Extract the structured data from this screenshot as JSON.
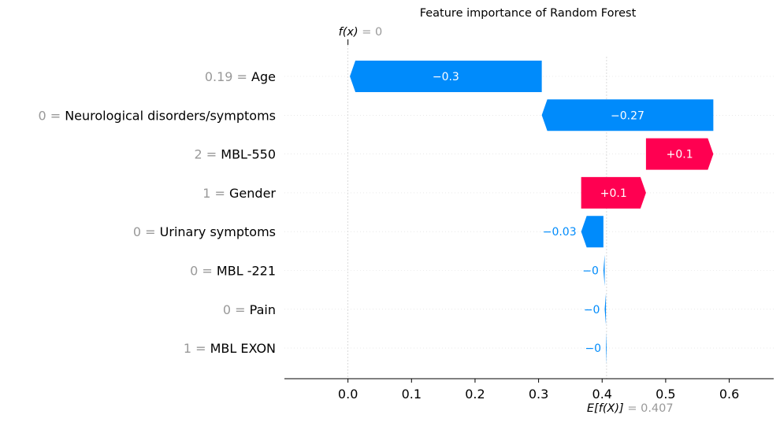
{
  "chart_data": {
    "type": "waterfall",
    "title": "Feature importance of Random Forest",
    "fx_label": "f(x)",
    "fx_value": "0",
    "efx_label": "E[f(X)]",
    "efx_value": "0.407",
    "base_value": 0.407,
    "final_value": 0.0,
    "xlim": [
      -0.1,
      0.67
    ],
    "x_ticks": [
      0.0,
      0.1,
      0.2,
      0.3,
      0.4,
      0.5,
      0.6
    ],
    "x_tick_labels": [
      "0.0",
      "0.1",
      "0.2",
      "0.3",
      "0.4",
      "0.5",
      "0.6"
    ],
    "features": [
      {
        "value_label": "0.19",
        "name": "Age",
        "contribution": -0.302,
        "label": "−0.3"
      },
      {
        "value_label": "0",
        "name": "Neurological disorders/symptoms",
        "contribution": -0.27,
        "label": "−0.27"
      },
      {
        "value_label": "2",
        "name": "MBL-550",
        "contribution": 0.106,
        "label": "+0.1"
      },
      {
        "value_label": "1",
        "name": "Gender",
        "contribution": 0.102,
        "label": "+0.1"
      },
      {
        "value_label": "0",
        "name": "Urinary symptoms",
        "contribution": -0.035,
        "label": "−0.03"
      },
      {
        "value_label": "0",
        "name": "MBL -221",
        "contribution": -0.002,
        "label": "−0"
      },
      {
        "value_label": "0",
        "name": "Pain",
        "contribution": -0.002,
        "label": "−0"
      },
      {
        "value_label": "1",
        "name": "MBL EXON",
        "contribution": -0.001,
        "label": "−0"
      }
    ],
    "colors": {
      "positive": "#ff0051",
      "negative": "#008bfb",
      "muted_text": "#999999",
      "grid": "#cccccc"
    }
  }
}
